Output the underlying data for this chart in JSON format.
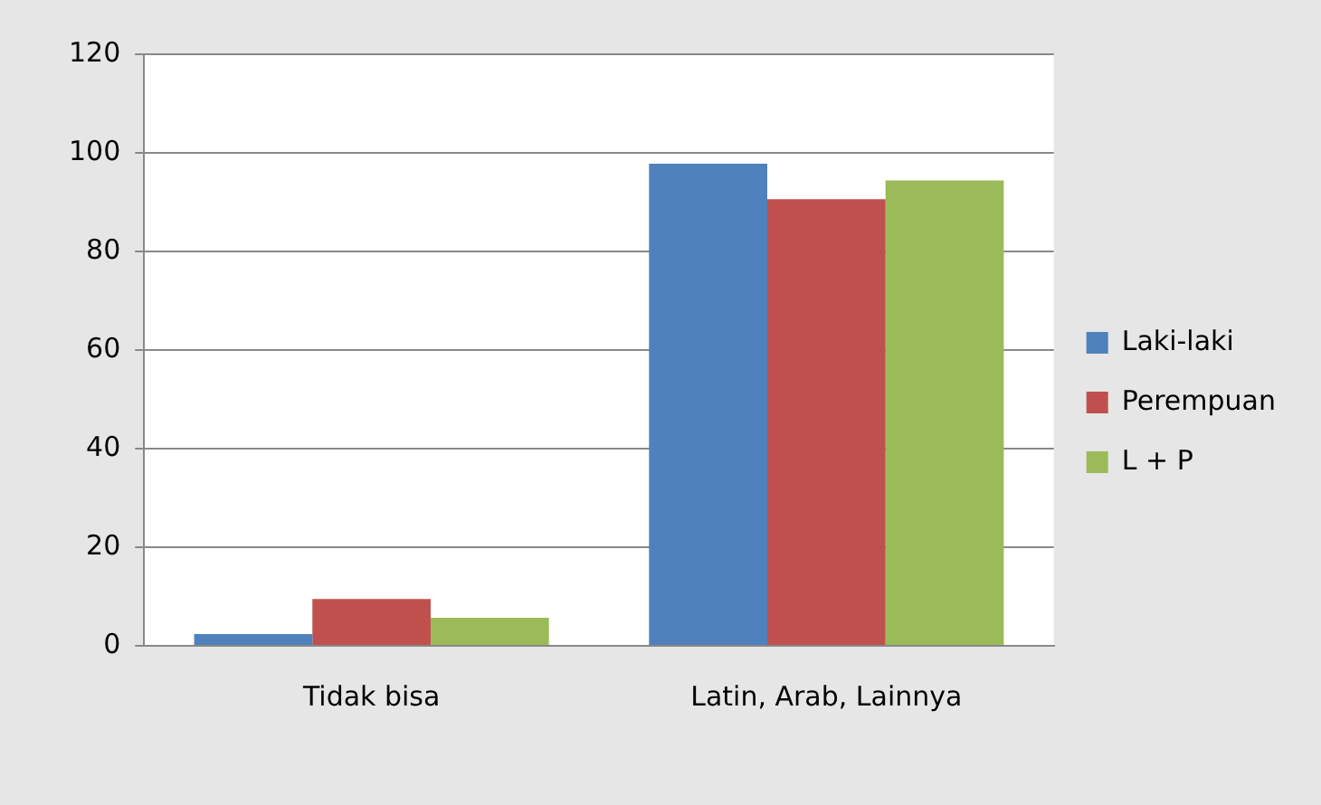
{
  "chart_data": {
    "type": "bar",
    "categories": [
      "Tidak bisa",
      "Latin, Arab, Lainnya"
    ],
    "series": [
      {
        "name": "Laki-laki",
        "color": "#4f81bd",
        "values": [
          2.4,
          97.8
        ]
      },
      {
        "name": "Perempuan",
        "color": "#c0504d",
        "values": [
          9.5,
          90.6
        ]
      },
      {
        "name": "L + P",
        "color": "#9bbb59",
        "values": [
          5.7,
          94.4
        ]
      }
    ],
    "ylim": [
      0,
      120
    ],
    "yticks": [
      0,
      20,
      40,
      60,
      80,
      100,
      120
    ],
    "grid": "y",
    "legend": "right"
  }
}
